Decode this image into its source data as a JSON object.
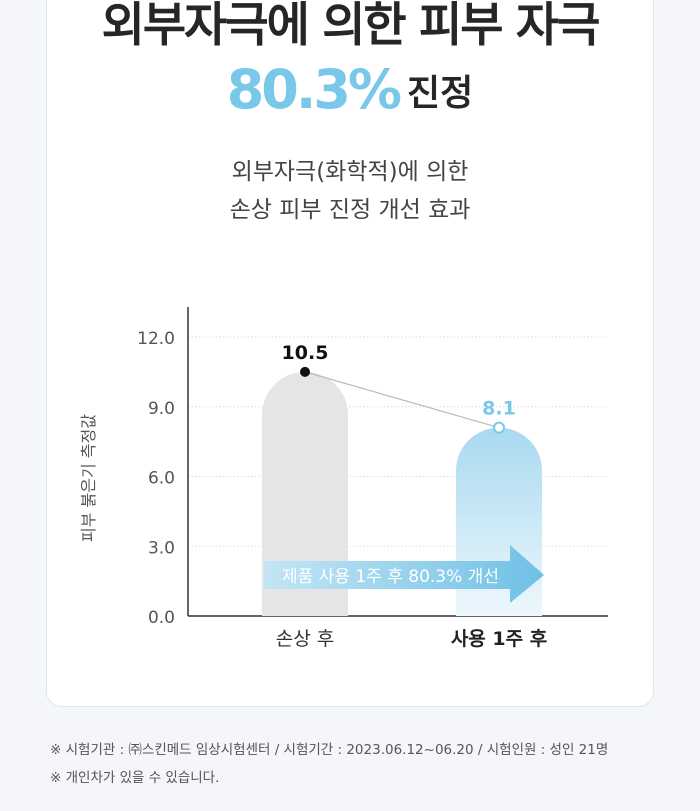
{
  "headline": "외부자극에 의한 피부 자극",
  "subheadline": {
    "percent": "80.3%",
    "word": "진정"
  },
  "description": [
    "외부자극(화학적)에 의한",
    "손상 피부 진정 개선 효과"
  ],
  "colors": {
    "accent": "#7ac8e9",
    "bar_before": "#e5e5e5",
    "bar_after_top": "#a9d9f0",
    "bar_after_bottom": "#eef8fd",
    "arrow": "#7ec7e8"
  },
  "chart_data": {
    "type": "bar",
    "categories": [
      "손상 후",
      "사용 1주 후"
    ],
    "values": [
      10.5,
      8.1
    ],
    "value_labels": [
      "10.5",
      "8.1"
    ],
    "ylabel": "피부 붉은기 측정값",
    "yticks": [
      "0.0",
      "3.0",
      "6.0",
      "9.0",
      "12.0"
    ],
    "ylim": [
      0,
      12
    ],
    "grid": true,
    "annotation": "제품 사용 1주 후 80.3% 개선"
  },
  "footnotes": [
    "※ 시험기관 : ㈜스킨메드 임상시험센터 / 시험기간 : 2023.06.12~06.20 / 시험인원 : 성인 21명",
    "※ 개인차가 있을 수 있습니다."
  ]
}
